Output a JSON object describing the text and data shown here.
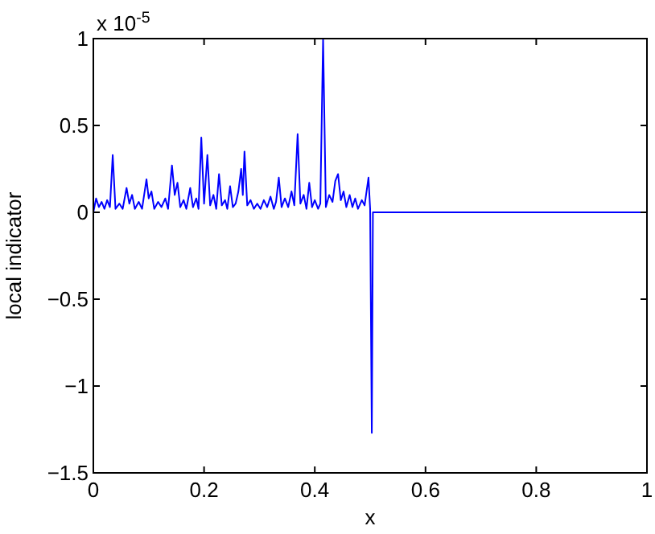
{
  "chart_data": {
    "type": "line",
    "xlabel": "x",
    "ylabel": "local indicator",
    "annotations": [
      "x 10$^{-5}$"
    ],
    "xlim": [
      0,
      1
    ],
    "xticks": [
      0,
      0.2,
      0.4,
      0.6,
      0.8,
      1
    ],
    "ylim": [
      -1.5,
      1
    ],
    "yticks": [
      -1.5,
      -1,
      -0.5,
      0,
      0.5,
      1
    ],
    "grid": false,
    "line_style": "solid",
    "series": [
      {
        "color": "#0000ff",
        "x": [
          0,
          0.005,
          0.01,
          0.015,
          0.02,
          0.025,
          0.03,
          0.035,
          0.04,
          0.047,
          0.053,
          0.06,
          0.065,
          0.07,
          0.075,
          0.082,
          0.088,
          0.096,
          0.1,
          0.105,
          0.11,
          0.117,
          0.123,
          0.13,
          0.135,
          0.142,
          0.147,
          0.152,
          0.157,
          0.163,
          0.168,
          0.175,
          0.18,
          0.186,
          0.19,
          0.195,
          0.2,
          0.206,
          0.211,
          0.217,
          0.222,
          0.227,
          0.232,
          0.238,
          0.242,
          0.247,
          0.252,
          0.257,
          0.262,
          0.267,
          0.27,
          0.273,
          0.278,
          0.284,
          0.29,
          0.296,
          0.302,
          0.308,
          0.314,
          0.32,
          0.326,
          0.33,
          0.335,
          0.34,
          0.346,
          0.352,
          0.358,
          0.363,
          0.369,
          0.374,
          0.38,
          0.385,
          0.39,
          0.395,
          0.4,
          0.406,
          0.41,
          0.415,
          0.42,
          0.426,
          0.432,
          0.437,
          0.442,
          0.447,
          0.452,
          0.457,
          0.463,
          0.468,
          0.473,
          0.478,
          0.485,
          0.49,
          0.497,
          0.5,
          0.503,
          0.505,
          1
        ],
        "values": [
          0,
          0.08,
          0.03,
          0.06,
          0.02,
          0.07,
          0.03,
          0.33,
          0.02,
          0.05,
          0.02,
          0.14,
          0.05,
          0.1,
          0.02,
          0.06,
          0.02,
          0.19,
          0.08,
          0.12,
          0.02,
          0.06,
          0.03,
          0.08,
          0.02,
          0.27,
          0.1,
          0.17,
          0.03,
          0.07,
          0.02,
          0.14,
          0.03,
          0.08,
          0.02,
          0.43,
          0.05,
          0.33,
          0.04,
          0.1,
          0.02,
          0.22,
          0.04,
          0.07,
          0.02,
          0.15,
          0.03,
          0.05,
          0.12,
          0.25,
          0.1,
          0.35,
          0.04,
          0.07,
          0.02,
          0.05,
          0.02,
          0.07,
          0.03,
          0.09,
          0.02,
          0.06,
          0.2,
          0.03,
          0.08,
          0.03,
          0.12,
          0.04,
          0.45,
          0.05,
          0.1,
          0.02,
          0.17,
          0.03,
          0.07,
          0.02,
          0.05,
          1,
          0.03,
          0.1,
          0.06,
          0.18,
          0.22,
          0.07,
          0.12,
          0.03,
          0.1,
          0.03,
          0.08,
          0.02,
          0.07,
          0.04,
          0.2,
          0.02,
          -1.27,
          0,
          0
        ]
      }
    ]
  }
}
